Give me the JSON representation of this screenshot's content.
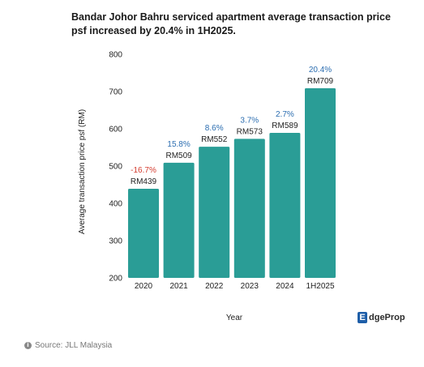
{
  "header": {
    "title": "Bandar Johor Bahru serviced apartment average transaction price psf increased by 20.4% in 1H2025."
  },
  "chart_data": {
    "type": "bar",
    "categories": [
      "2020",
      "2021",
      "2022",
      "2023",
      "2024",
      "1H2025"
    ],
    "values": [
      439,
      509,
      552,
      573,
      589,
      709
    ],
    "value_labels": [
      "RM439",
      "RM509",
      "RM552",
      "RM573",
      "RM589",
      "RM709"
    ],
    "change_labels": [
      "-16.7%",
      "15.8%",
      "8.6%",
      "3.7%",
      "2.7%",
      "20.4%"
    ],
    "change_colors": [
      "#d43c2f",
      "#2b6db0",
      "#2b6db0",
      "#2b6db0",
      "#2b6db0",
      "#2b6db0"
    ],
    "bar_color": "#2a9d96",
    "xlabel": "Year",
    "ylabel": "Average transaction price psf (RM)",
    "ylim": [
      200,
      800
    ],
    "yticks": [
      200,
      300,
      400,
      500,
      600,
      700,
      800
    ],
    "grid": false,
    "legend": "none"
  },
  "footer": {
    "source": "Source: JLL Malaysia",
    "logo_mark": "E",
    "logo_text": "dgeProp"
  }
}
